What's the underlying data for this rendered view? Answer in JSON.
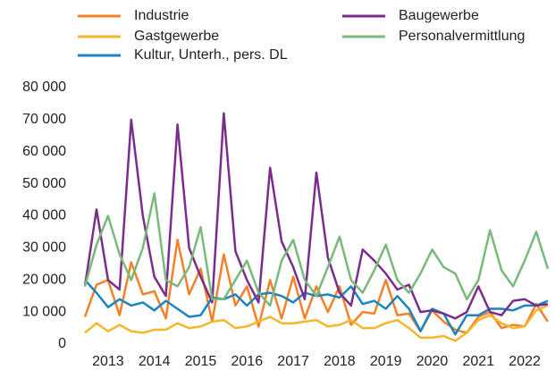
{
  "chart_data": {
    "type": "line",
    "categories": [
      null,
      null,
      "2013",
      null,
      null,
      null,
      "2014",
      null,
      null,
      null,
      "2015",
      null,
      null,
      null,
      "2016",
      null,
      null,
      null,
      "2017",
      null,
      null,
      null,
      "2018",
      null,
      null,
      null,
      "2019",
      null,
      null,
      null,
      "2020",
      null,
      null,
      null,
      "2021",
      null,
      null,
      null,
      "2022",
      null,
      null
    ],
    "series": [
      {
        "name": "Industrie",
        "color": "#f4812a",
        "values": [
          8500,
          18500,
          20000,
          9000,
          25500,
          15500,
          16500,
          8000,
          32500,
          15500,
          23500,
          7000,
          28000,
          12000,
          18000,
          5500,
          20000,
          8000,
          21000,
          8000,
          18000,
          10000,
          18000,
          6000,
          10000,
          9500,
          20000,
          9000,
          9500,
          4000,
          10500,
          7000,
          4500,
          3500,
          8500,
          10000,
          5000,
          6000,
          5500,
          12500,
          7000
        ]
      },
      {
        "name": "Gastgewerbe",
        "color": "#f6b62b",
        "values": [
          3500,
          6500,
          4000,
          6000,
          4000,
          3500,
          4500,
          4500,
          6500,
          5000,
          5500,
          7000,
          7500,
          5000,
          5500,
          7000,
          8500,
          6500,
          6500,
          7000,
          7500,
          5500,
          6000,
          7500,
          5000,
          5000,
          6500,
          7500,
          5000,
          2000,
          2000,
          2500,
          1000,
          3500,
          7500,
          9000,
          6500,
          5000,
          5500,
          10500,
          12000
        ]
      },
      {
        "name": "Kultur, Unterh., pers. DL",
        "color": "#1a84c0",
        "values": [
          20000,
          16000,
          11500,
          14000,
          12000,
          13000,
          10500,
          13500,
          11000,
          8500,
          9000,
          14500,
          14000,
          15500,
          12000,
          15500,
          16000,
          15000,
          13000,
          16000,
          15000,
          15500,
          14500,
          18000,
          12500,
          13500,
          11000,
          15000,
          11000,
          4000,
          11000,
          9500,
          3000,
          9000,
          9000,
          11000,
          11000,
          10500,
          12000,
          12000,
          13500
        ]
      },
      {
        "name": "Baugewerbe",
        "color": "#7b2d8e",
        "values": [
          18000,
          42000,
          20000,
          17000,
          70000,
          40000,
          21000,
          15000,
          68500,
          30000,
          21000,
          13000,
          72000,
          29000,
          20000,
          13000,
          55000,
          32000,
          24000,
          14000,
          53500,
          27000,
          16000,
          12000,
          29500,
          26000,
          22000,
          17000,
          18500,
          10000,
          10500,
          9500,
          8000,
          10000,
          18000,
          10000,
          9000,
          13500,
          14000,
          12000,
          12500
        ]
      },
      {
        "name": "Personalvermittlung",
        "color": "#79b97a",
        "values": [
          18000,
          31000,
          40000,
          28000,
          20000,
          30000,
          47000,
          20000,
          18000,
          24000,
          36500,
          14000,
          14000,
          20000,
          26000,
          16000,
          12000,
          26000,
          32500,
          20000,
          15000,
          24000,
          33500,
          20000,
          16000,
          23000,
          31000,
          20000,
          16000,
          22000,
          29500,
          24000,
          22000,
          14000,
          20000,
          35500,
          23000,
          18000,
          26000,
          35000,
          23500
        ]
      }
    ],
    "ylim": [
      0,
      80000
    ],
    "yticks": [
      0,
      {
        "value": 10000,
        "label": "10 000"
      },
      {
        "value": 20000,
        "label": "20 000"
      },
      {
        "value": 30000,
        "label": "30 000"
      },
      {
        "value": 40000,
        "label": "40 000"
      },
      {
        "value": 50000,
        "label": "50 000"
      },
      {
        "value": 60000,
        "label": "60 000"
      },
      {
        "value": 70000,
        "label": "70 000"
      },
      {
        "value": 80000,
        "label": "80 000"
      }
    ],
    "grid": false
  }
}
